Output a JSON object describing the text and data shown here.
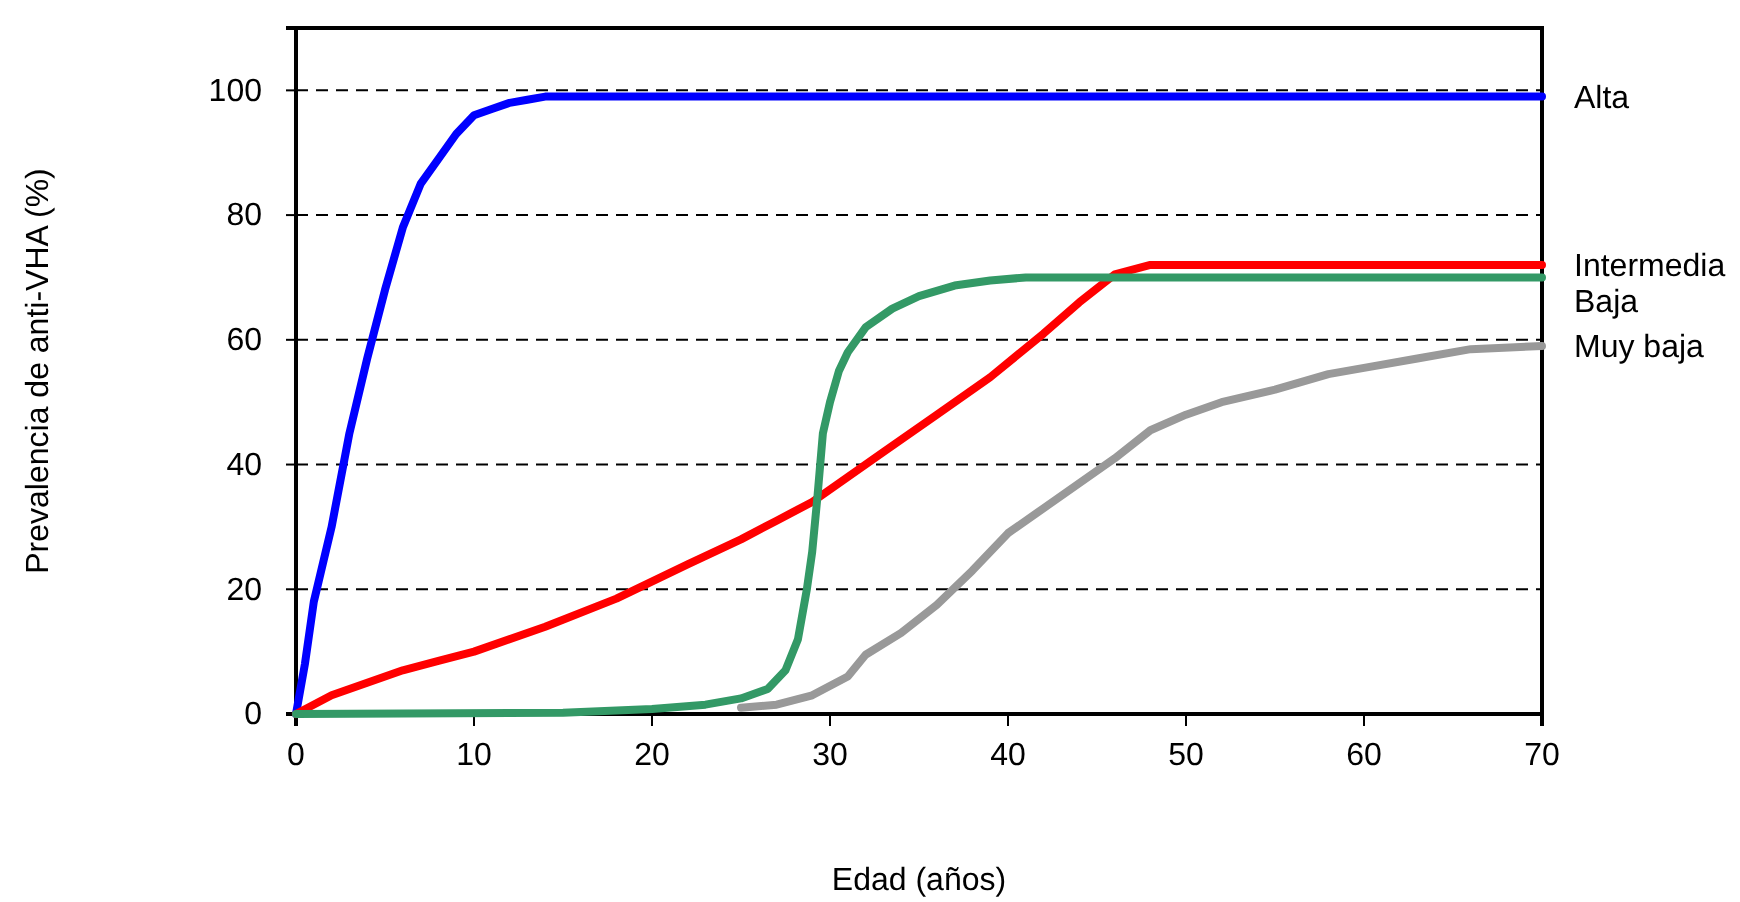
{
  "chart_data": {
    "type": "line",
    "xlabel": "Edad (años)",
    "ylabel": "Prevalencia de anti-VHA (%)",
    "xlim": [
      0,
      70
    ],
    "xticks": [
      0,
      10,
      20,
      30,
      40,
      50,
      60,
      70
    ],
    "ylim": [
      0,
      110
    ],
    "yticks": [
      0,
      20,
      40,
      60,
      80,
      100
    ],
    "grid": "y",
    "line_style": "solid",
    "marker": "none",
    "series": [
      {
        "name": "Alta",
        "color": "#0000ff",
        "x": [
          0,
          0.5,
          1,
          2,
          3,
          4,
          5,
          6,
          7,
          8,
          9,
          10,
          11,
          12,
          13,
          14,
          70
        ],
        "values": [
          0,
          8,
          18,
          30,
          45,
          57,
          68,
          78,
          85,
          89,
          93,
          96,
          97,
          98,
          98.5,
          99,
          99
        ]
      },
      {
        "name": "Intermedia",
        "color": "#ff0000",
        "x": [
          0,
          2,
          4,
          6,
          8,
          10,
          14,
          18,
          22,
          25,
          27,
          29,
          31,
          33,
          36,
          39,
          42,
          44,
          46,
          48,
          70
        ],
        "values": [
          0,
          3,
          5,
          7,
          8.5,
          10,
          14,
          18.5,
          24,
          28,
          31,
          34,
          38,
          42,
          48,
          54,
          61,
          66,
          70.5,
          72,
          72
        ]
      },
      {
        "name": "Baja",
        "color": "#339966",
        "x": [
          0,
          15,
          20,
          23,
          25,
          26.5,
          27.5,
          28.2,
          28.7,
          29,
          29.3,
          29.6,
          30,
          30.5,
          31,
          32,
          33.5,
          35,
          37,
          39,
          41,
          70
        ],
        "values": [
          0,
          0.2,
          0.8,
          1.5,
          2.5,
          4,
          7,
          12,
          20,
          26,
          35,
          45,
          50,
          55,
          58,
          62,
          65,
          67,
          68.7,
          69.5,
          70,
          70
        ]
      },
      {
        "name": "Muy baja",
        "color": "#999999",
        "x": [
          25,
          27,
          29,
          31,
          32,
          34,
          36,
          38,
          40,
          42,
          44,
          46,
          48,
          50,
          52,
          55,
          58,
          60,
          63,
          66,
          70
        ],
        "values": [
          1,
          1.5,
          3,
          6,
          9.5,
          13,
          17.5,
          23,
          29,
          33,
          37,
          41,
          45.5,
          48,
          50,
          52,
          54.5,
          55.5,
          57,
          58.5,
          59
        ]
      }
    ]
  }
}
